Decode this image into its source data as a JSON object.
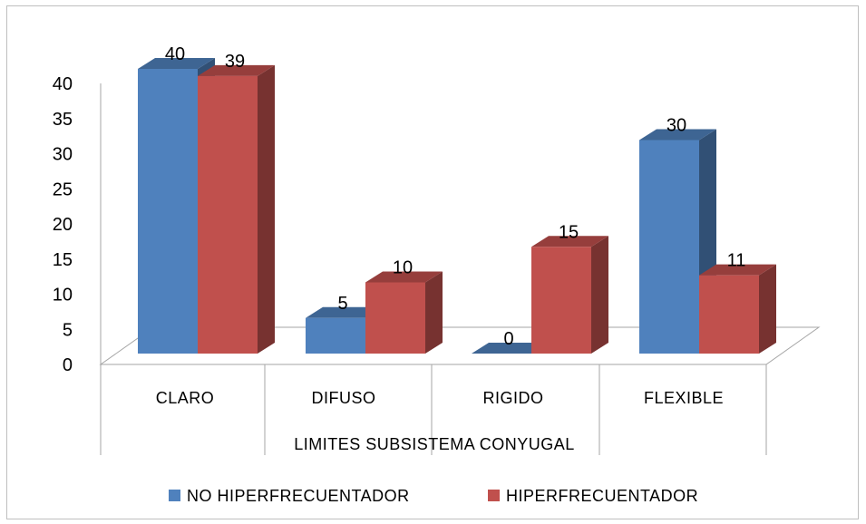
{
  "chart_data": {
    "type": "bar",
    "style": "3d-clustered-column",
    "categories": [
      "CLARO",
      "DIFUSO",
      "RIGIDO",
      "FLEXIBLE"
    ],
    "series": [
      {
        "name": "NO HIPERFRECUENTADOR",
        "values": [
          40,
          5,
          0,
          30
        ],
        "color": "#4f81bd"
      },
      {
        "name": "HIPERFRECUENTADOR",
        "values": [
          39,
          10,
          15,
          11
        ],
        "color": "#c0504d"
      }
    ],
    "y_ticks": [
      "0",
      "5",
      "10",
      "15",
      "20",
      "25",
      "30",
      "35",
      "40"
    ],
    "xlabel": "LIMITES SUBSISTEMA CONYUGAL",
    "ylabel": "",
    "ylim": [
      0,
      40
    ],
    "grid": false,
    "legend_position": "bottom",
    "data_labels": true
  }
}
